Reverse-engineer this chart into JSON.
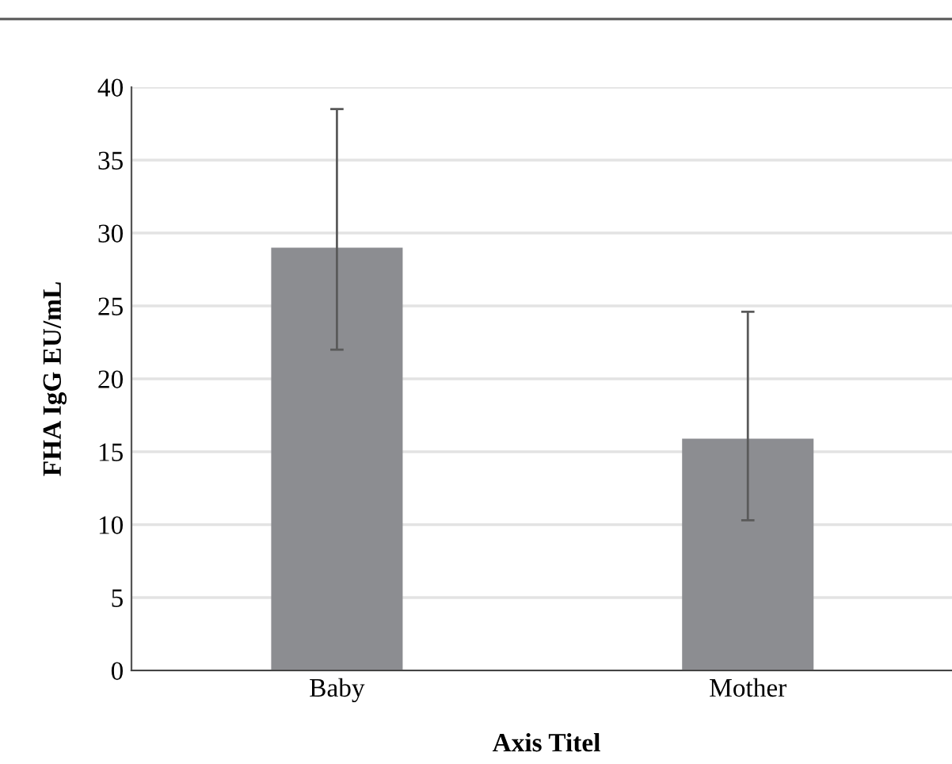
{
  "chart_data": {
    "type": "bar",
    "xlabel": "Axis Titel",
    "ylabel": "FHA IgG EU/mL",
    "categories": [
      "Baby",
      "Mother"
    ],
    "values": [
      29,
      15.9
    ],
    "errors": [
      [
        22,
        38.5
      ],
      [
        10.3,
        24.6
      ]
    ],
    "color": "#8c8d91",
    "ylim": [
      0,
      40
    ],
    "yticks": [
      0,
      5,
      10,
      15,
      20,
      25,
      30,
      35,
      40
    ],
    "grid": "y",
    "legend": false
  }
}
